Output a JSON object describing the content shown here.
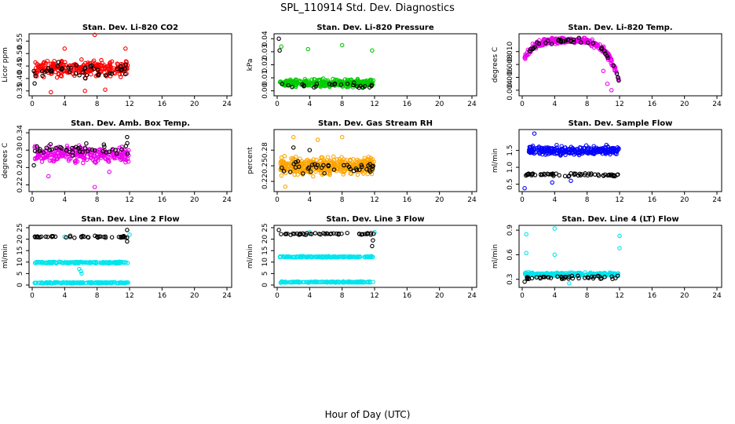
{
  "page": {
    "title": "SPL_110914  Std. Dev. Diagnostics",
    "xlabel": "Hour of Day (UTC)"
  },
  "chart_data": [
    {
      "type": "scatter",
      "title": "Stan. Dev. Li-820 CO2",
      "ylabel": "Licor ppm",
      "xlim": [
        0,
        24
      ],
      "ylim": [
        0.34,
        0.57
      ],
      "xticks": [
        0,
        4,
        8,
        12,
        16,
        20,
        24
      ],
      "yticks": [
        0.35,
        0.4,
        0.45,
        0.5,
        0.55
      ],
      "ytick_labels": [
        "0.35",
        "0.40",
        "0.45",
        "0.50",
        "0.55"
      ],
      "series": [
        {
          "color": "#ff0000",
          "dense": true,
          "x_range": [
            0.3,
            11.9
          ],
          "y_center": 0.44,
          "y_spread": 0.045,
          "count": 260,
          "points": [
            [
              7.7,
              0.575
            ],
            [
              2.3,
              0.345
            ],
            [
              6.5,
              0.35
            ],
            [
              9.0,
              0.355
            ],
            [
              11.5,
              0.52
            ],
            [
              4.0,
              0.52
            ]
          ]
        },
        {
          "color": "#000000",
          "dense": false,
          "x_range": [
            0.3,
            11.9
          ],
          "y_center": 0.435,
          "y_spread": 0.04,
          "count": 40,
          "points": [
            [
              0.3,
              0.38
            ],
            [
              0.4,
              0.41
            ],
            [
              0.2,
              0.43
            ]
          ]
        }
      ]
    },
    {
      "type": "scatter",
      "title": "Stan. Dev. Li-820 Pressure",
      "ylabel": "kPa",
      "xlim": [
        0,
        24
      ],
      "ylim": [
        -0.002,
        0.042
      ],
      "xticks": [
        0,
        4,
        8,
        12,
        16,
        20,
        24
      ],
      "yticks": [
        0.0,
        0.01,
        0.02,
        0.03,
        0.04
      ],
      "ytick_labels": [
        "0.00",
        "0.01",
        "0.02",
        "0.03",
        "0.04"
      ],
      "series": [
        {
          "color": "#00cc00",
          "dense": true,
          "x_range": [
            0.3,
            11.9
          ],
          "y_center": 0.006,
          "y_spread": 0.004,
          "count": 300,
          "points": [
            [
              0.5,
              0.034
            ],
            [
              3.8,
              0.032
            ],
            [
              8.0,
              0.035
            ],
            [
              11.7,
              0.031
            ]
          ]
        },
        {
          "color": "#000000",
          "dense": false,
          "x_range": [
            0.3,
            11.9
          ],
          "y_center": 0.004,
          "y_spread": 0.003,
          "count": 25,
          "points": [
            [
              0.2,
              0.04
            ],
            [
              0.3,
              0.031
            ]
          ]
        }
      ]
    },
    {
      "type": "scatter",
      "title": "Stan. Dev. Li-820 Temp.",
      "ylabel": "degrees C",
      "xlim": [
        0,
        24
      ],
      "ylim": [
        0.0035,
        0.0124
      ],
      "xticks": [
        0,
        4,
        8,
        12,
        16,
        20,
        24
      ],
      "yticks": [
        0.004,
        0.006,
        0.008,
        0.01
      ],
      "ytick_labels": [
        "0.004",
        "0.006",
        "0.008",
        "0.010"
      ],
      "series": [
        {
          "color": "#ee00ee",
          "dense": true,
          "x_range": [
            0.3,
            11.9
          ],
          "y_center": 0.0105,
          "y_spread": 0.001,
          "count": 280,
          "points": [
            [
              11.0,
              0.004
            ],
            [
              10.5,
              0.005
            ],
            [
              10.0,
              0.007
            ]
          ]
        },
        {
          "color": "#000000",
          "dense": false,
          "x_range": [
            0.3,
            11.9
          ],
          "y_center": 0.0105,
          "y_spread": 0.0008,
          "count": 35,
          "points": [
            [
              11.8,
              0.006
            ],
            [
              11.9,
              0.0055
            ]
          ]
        }
      ]
    },
    {
      "type": "scatter",
      "title": "Stan. Dev. Amb. Box Temp.",
      "ylabel": "degrees C",
      "xlim": [
        0,
        24
      ],
      "ylim": [
        0.21,
        0.342
      ],
      "xticks": [
        0,
        4,
        8,
        12,
        16,
        20,
        24
      ],
      "yticks": [
        0.22,
        0.26,
        0.3,
        0.34
      ],
      "ytick_labels": [
        "0.22",
        "0.26",
        "0.30",
        "0.34"
      ],
      "series": [
        {
          "color": "#ee00ee",
          "dense": true,
          "x_range": [
            0.3,
            11.9
          ],
          "y_center": 0.29,
          "y_spread": 0.025,
          "count": 260,
          "points": [
            [
              7.7,
              0.215
            ],
            [
              2.0,
              0.24
            ],
            [
              9.5,
              0.25
            ]
          ]
        },
        {
          "color": "#000000",
          "dense": false,
          "x_range": [
            0.3,
            11.9
          ],
          "y_center": 0.3,
          "y_spread": 0.02,
          "count": 40,
          "points": [
            [
              0.2,
              0.265
            ],
            [
              11.7,
              0.33
            ]
          ]
        }
      ]
    },
    {
      "type": "scatter",
      "title": "Stan. Dev. Gas Stream RH",
      "ylabel": "percent",
      "xlim": [
        0,
        24
      ],
      "ylim": [
        0.205,
        0.315
      ],
      "xticks": [
        0,
        4,
        8,
        12,
        16,
        20,
        24
      ],
      "yticks": [
        0.22,
        0.25,
        0.28
      ],
      "ytick_labels": [
        "0.22",
        "0.25",
        "0.28"
      ],
      "series": [
        {
          "color": "#ffa500",
          "dense": true,
          "x_range": [
            0.3,
            11.9
          ],
          "y_center": 0.25,
          "y_spread": 0.022,
          "count": 420,
          "points": [
            [
              2.0,
              0.305
            ],
            [
              8.0,
              0.305
            ],
            [
              5.0,
              0.3
            ],
            [
              1.0,
              0.21
            ]
          ]
        },
        {
          "color": "#000000",
          "dense": false,
          "x_range": [
            0.3,
            11.9
          ],
          "y_center": 0.245,
          "y_spread": 0.018,
          "count": 40,
          "points": [
            [
              2.0,
              0.285
            ],
            [
              4.0,
              0.28
            ]
          ]
        }
      ]
    },
    {
      "type": "scatter",
      "title": "Stan. Dev. Sample Flow",
      "ylabel": "ml/min",
      "xlim": [
        0,
        24
      ],
      "ylim": [
        0.35,
        2.05
      ],
      "xticks": [
        0,
        4,
        8,
        12,
        16,
        20,
        24
      ],
      "yticks": [
        0.5,
        1.0,
        1.5
      ],
      "ytick_labels": [
        "0.5",
        "1.0",
        "1.5"
      ],
      "series": [
        {
          "color": "#0000ff",
          "dense": true,
          "x_range": [
            0.8,
            11.9
          ],
          "y_center": 1.5,
          "y_spread": 0.18,
          "count": 260,
          "points": [
            [
              1.5,
              2.0
            ],
            [
              0.3,
              0.38
            ],
            [
              3.7,
              0.55
            ],
            [
              6.0,
              0.6
            ]
          ]
        },
        {
          "color": "#000000",
          "dense": false,
          "x_range": [
            0.3,
            11.9
          ],
          "y_center": 0.78,
          "y_spread": 0.07,
          "count": 60,
          "points": []
        }
      ]
    },
    {
      "type": "scatter",
      "title": "Stan. Dev. Line 2 Flow",
      "ylabel": "ml/min",
      "xlim": [
        0,
        24
      ],
      "ylim": [
        0,
        25
      ],
      "xticks": [
        0,
        4,
        8,
        12,
        16,
        20,
        24
      ],
      "yticks": [
        0,
        5,
        10,
        15,
        20,
        25
      ],
      "ytick_labels": [
        "0",
        "5",
        "10",
        "15",
        "20",
        "25"
      ],
      "series": [
        {
          "color": "#00e5ee",
          "dense": true,
          "x_range": [
            0.3,
            11.9
          ],
          "y_center": 9.8,
          "y_spread": 0.5,
          "count": 160,
          "points": [
            [
              6.0,
              6.0
            ],
            [
              6.1,
              5.0
            ],
            [
              5.8,
              7.0
            ]
          ]
        },
        {
          "color": "#00e5ee",
          "dense": true,
          "x_range": [
            0.3,
            11.9
          ],
          "y_center": 1.0,
          "y_spread": 0.4,
          "count": 160,
          "points": [
            [
              12.0,
              22.0
            ],
            [
              4.0,
              21.0
            ]
          ]
        },
        {
          "color": "#000000",
          "dense": false,
          "x_range": [
            0.3,
            11.9
          ],
          "y_center": 21.0,
          "y_spread": 0.6,
          "count": 45,
          "points": [
            [
              11.7,
              24.0
            ],
            [
              11.7,
              19.0
            ]
          ]
        }
      ]
    },
    {
      "type": "scatter",
      "title": "Stan. Dev. Line 3 Flow",
      "ylabel": "ml/min",
      "xlim": [
        0,
        24
      ],
      "ylim": [
        0,
        25
      ],
      "xticks": [
        0,
        4,
        8,
        12,
        16,
        20,
        24
      ],
      "yticks": [
        0,
        5,
        10,
        15,
        20,
        25
      ],
      "ytick_labels": [
        "0",
        "5",
        "10",
        "15",
        "20",
        "25"
      ],
      "series": [
        {
          "color": "#00e5ee",
          "dense": true,
          "x_range": [
            0.3,
            11.9
          ],
          "y_center": 12.3,
          "y_spread": 0.4,
          "count": 160,
          "points": [
            [
              12.0,
              23.0
            ],
            [
              4.0,
              23.0
            ]
          ]
        },
        {
          "color": "#00e5ee",
          "dense": true,
          "x_range": [
            0.3,
            11.9
          ],
          "y_center": 1.3,
          "y_spread": 0.4,
          "count": 160,
          "points": []
        },
        {
          "color": "#000000",
          "dense": false,
          "x_range": [
            0.3,
            11.9
          ],
          "y_center": 22.3,
          "y_spread": 0.7,
          "count": 45,
          "points": [
            [
              11.7,
              17.0
            ],
            [
              11.8,
              19.5
            ],
            [
              0.2,
              24.0
            ]
          ]
        }
      ]
    },
    {
      "type": "scatter",
      "title": "Stan. Dev. Line 4 (LT) Flow",
      "ylabel": "ml/min",
      "xlim": [
        0,
        24
      ],
      "ylim": [
        0.23,
        0.93
      ],
      "xticks": [
        0,
        4,
        8,
        12,
        16,
        20,
        24
      ],
      "yticks": [
        0.3,
        0.6,
        0.9
      ],
      "ytick_labels": [
        "0.3",
        "0.6",
        "0.9"
      ],
      "series": [
        {
          "color": "#00e5ee",
          "dense": true,
          "x_range": [
            0.3,
            11.9
          ],
          "y_center": 0.36,
          "y_spread": 0.03,
          "count": 240,
          "points": [
            [
              0.5,
              0.85
            ],
            [
              4.0,
              0.92
            ],
            [
              12.0,
              0.83
            ],
            [
              12.0,
              0.68
            ],
            [
              0.5,
              0.62
            ],
            [
              4.0,
              0.6
            ],
            [
              5.8,
              0.25
            ]
          ]
        },
        {
          "color": "#000000",
          "dense": false,
          "x_range": [
            0.3,
            11.9
          ],
          "y_center": 0.32,
          "y_spread": 0.03,
          "count": 45,
          "points": [
            [
              0.3,
              0.27
            ]
          ]
        }
      ]
    }
  ]
}
